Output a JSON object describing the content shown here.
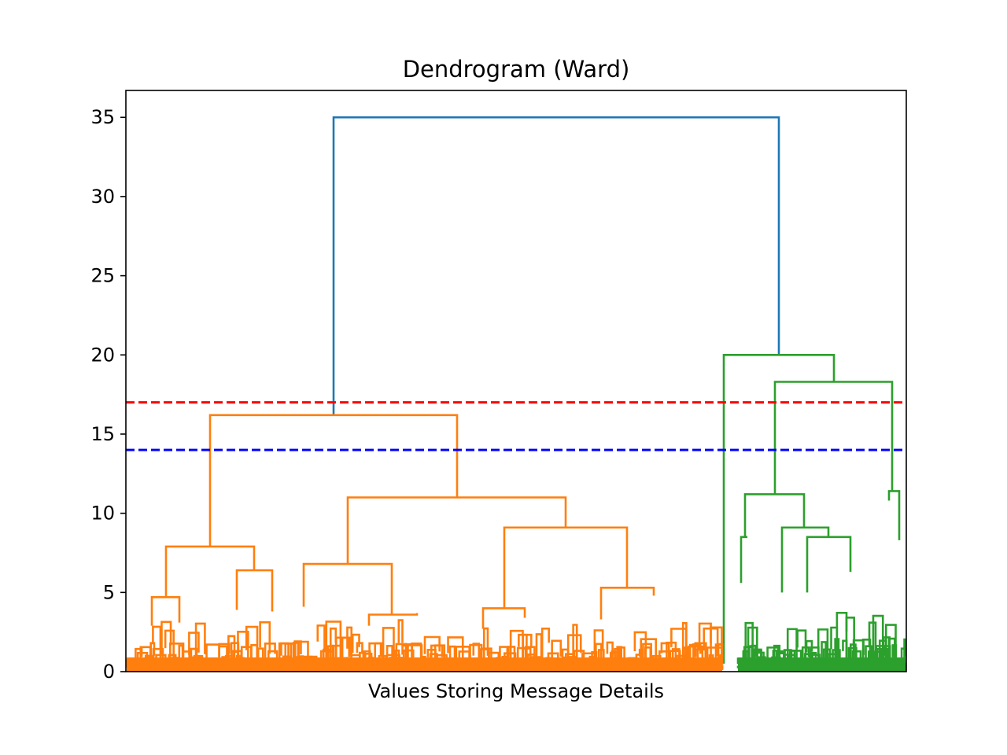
{
  "chart_data": {
    "type": "dendrogram",
    "title": "Dendrogram (Ward)",
    "xlabel": "Values Storing Message Details",
    "ylabel": "",
    "ylim": [
      0,
      36.7
    ],
    "yticks": [
      0,
      5,
      10,
      15,
      20,
      25,
      30,
      35
    ],
    "ytick_labels": [
      "0",
      "5",
      "10",
      "15",
      "20",
      "25",
      "30",
      "35"
    ],
    "grid": false,
    "threshold_lines": [
      {
        "y": 17,
        "color": "#ff0000",
        "style": "dashed"
      },
      {
        "y": 14,
        "color": "#0000ff",
        "style": "dashed"
      }
    ],
    "clusters": [
      {
        "name": "",
        "color": "#ff7f0e",
        "merge_height": 16.2
      },
      {
        "name": "",
        "color": "#2ca02c",
        "merge_height": 20.0
      }
    ],
    "root": {
      "color": "#1f77b4",
      "height": 35.0
    },
    "links": [
      {
        "x": [
          16.2,
          16.2,
          20.0,
          20.0
        ],
        "height": 35.0,
        "color": "#1f77b4",
        "children": [
          "orange",
          "green"
        ]
      },
      {
        "height": 16.2,
        "color": "#ff7f0e",
        "children": [
          7.9,
          11.0
        ]
      },
      {
        "height": 11.0,
        "color": "#ff7f0e",
        "children": [
          6.8,
          9.1
        ]
      },
      {
        "height": 9.1,
        "color": "#ff7f0e",
        "children": [
          4.0,
          5.3
        ]
      },
      {
        "height": 7.9,
        "color": "#ff7f0e",
        "children": [
          4.7,
          6.4
        ]
      },
      {
        "height": 20.0,
        "color": "#2ca02c",
        "children": [
          0.5,
          18.3
        ]
      },
      {
        "height": 18.3,
        "color": "#2ca02c",
        "children": [
          11.2,
          11.4
        ]
      },
      {
        "height": 11.2,
        "color": "#2ca02c",
        "children": [
          8.5,
          9.1
        ]
      },
      {
        "height": 9.1,
        "color": "#2ca02c",
        "children": [
          5.0,
          8.5
        ]
      },
      {
        "height": 8.5,
        "color": "#2ca02c",
        "children": [
          5.0,
          6.3
        ]
      },
      {
        "height": 11.4,
        "color": "#2ca02c",
        "children": [
          10.8,
          8.3
        ]
      }
    ],
    "colors": {
      "orange": "#ff7f0e",
      "green": "#2ca02c",
      "blue": "#1f77b4",
      "red": "#ff0000",
      "threshold_blue": "#0000ff"
    }
  }
}
